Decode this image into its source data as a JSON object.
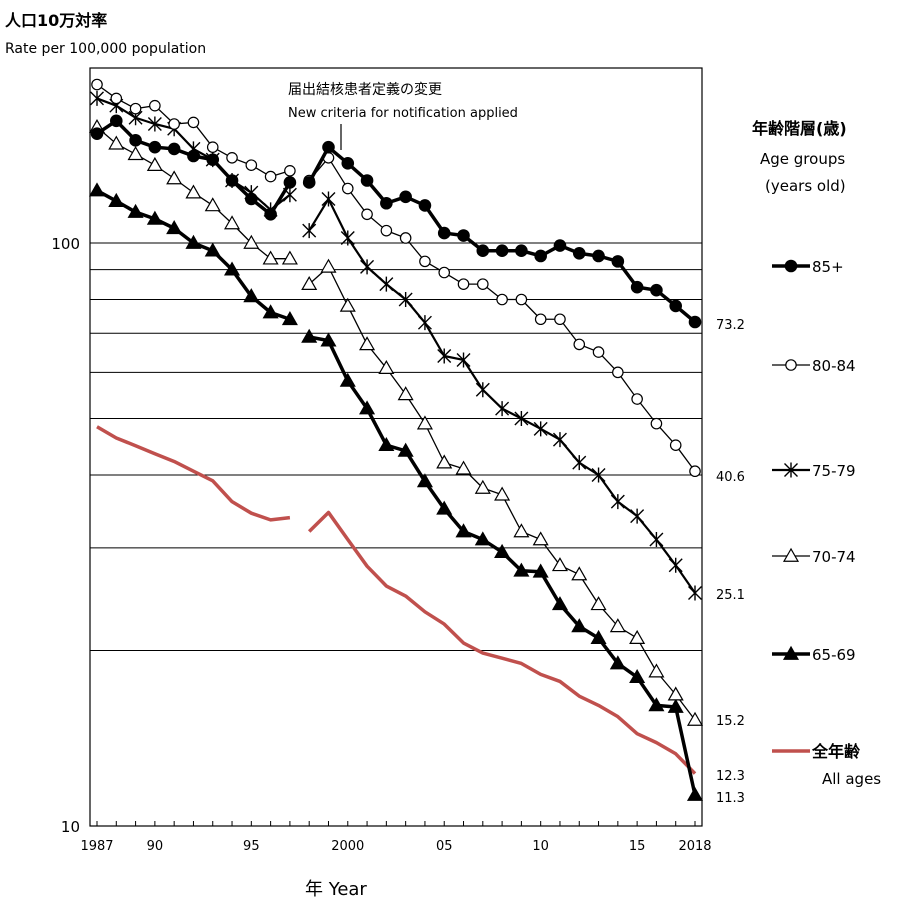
{
  "header": {
    "ylabel_jp": "人口10万対率",
    "ylabel_en": "Rate per 100,000  population"
  },
  "annotation": {
    "line1": "届出結核患者定義の変更",
    "line2": "New criteria for notification applied"
  },
  "legend": {
    "title": "年齢階層(歳)",
    "sub1": "Age groups",
    "sub2": "(years old)"
  },
  "xaxis": {
    "label": "年  Year",
    "ticks": [
      {
        "year": 1987,
        "label": "1987"
      },
      {
        "year": 1990,
        "label": "90"
      },
      {
        "year": 1995,
        "label": "95"
      },
      {
        "year": 2000,
        "label": "2000"
      },
      {
        "year": 2005,
        "label": "05"
      },
      {
        "year": 2010,
        "label": "10"
      },
      {
        "year": 2015,
        "label": "15"
      },
      {
        "year": 2018,
        "label": "2018"
      }
    ]
  },
  "yaxis": {
    "ticks": [
      {
        "value": 100,
        "label": "100"
      },
      {
        "value": 10,
        "label": "10"
      }
    ]
  },
  "end_labels": [
    {
      "text": "73.2"
    },
    {
      "text": "40.6"
    },
    {
      "text": "25.1"
    },
    {
      "text": "15.2"
    },
    {
      "text": "12.3"
    },
    {
      "text": "11.3"
    }
  ],
  "chart_data": {
    "type": "line",
    "log_scale_y": true,
    "ylim": [
      10,
      200
    ],
    "xlim": [
      1987,
      2018
    ],
    "gridlines_y": [
      100,
      90,
      80,
      70,
      60,
      50,
      40,
      30,
      20
    ],
    "break_between": [
      1997,
      1998
    ],
    "series": [
      {
        "name": "85+",
        "style": "filled-circle",
        "color": "#000000",
        "stroke_width": 3.5,
        "x": [
          1987,
          1988,
          1989,
          1990,
          1991,
          1992,
          1993,
          1994,
          1995,
          1996,
          1997,
          1998,
          1999,
          2000,
          2001,
          2002,
          2003,
          2004,
          2005,
          2006,
          2007,
          2008,
          2009,
          2010,
          2011,
          2012,
          2013,
          2014,
          2015,
          2016,
          2017,
          2018
        ],
        "values": [
          154,
          162,
          150,
          146,
          145,
          141,
          139,
          128,
          119,
          112,
          127,
          127,
          146,
          137,
          128,
          117,
          120,
          116,
          104,
          103,
          97,
          97,
          97,
          95,
          99,
          96,
          95,
          93,
          84,
          83,
          78,
          73.2
        ]
      },
      {
        "name": "80-84",
        "style": "open-circle",
        "color": "#000000",
        "stroke_width": 1.3,
        "x": [
          1987,
          1988,
          1989,
          1990,
          1991,
          1992,
          1993,
          1994,
          1995,
          1996,
          1997,
          1998,
          1999,
          2000,
          2001,
          2002,
          2003,
          2004,
          2005,
          2006,
          2007,
          2008,
          2009,
          2010,
          2011,
          2012,
          2013,
          2014,
          2015,
          2016,
          2017,
          2018
        ],
        "values": [
          187,
          177,
          170,
          172,
          160,
          161,
          146,
          140,
          136,
          130,
          133,
          128,
          140,
          124,
          112,
          105,
          102,
          93,
          89,
          85,
          85,
          80,
          80,
          74,
          74,
          67,
          65,
          60,
          54,
          49,
          45,
          40.6
        ]
      },
      {
        "name": "75-79",
        "style": "asterisk",
        "color": "#000000",
        "stroke_width": 2.2,
        "x": [
          1987,
          1988,
          1989,
          1990,
          1991,
          1992,
          1993,
          1994,
          1995,
          1996,
          1997,
          1998,
          1999,
          2000,
          2001,
          2002,
          2003,
          2004,
          2005,
          2006,
          2007,
          2008,
          2009,
          2010,
          2011,
          2012,
          2013,
          2014,
          2015,
          2016,
          2017,
          2018
        ],
        "values": [
          177,
          172,
          164,
          160,
          157,
          145,
          139,
          128,
          122,
          114,
          121,
          105,
          119,
          102,
          91,
          85,
          80,
          73,
          64,
          63,
          56,
          52,
          50,
          48,
          46,
          42,
          40,
          36,
          34,
          31,
          28,
          25.1
        ]
      },
      {
        "name": "70-74",
        "style": "open-triangle",
        "color": "#000000",
        "stroke_width": 1.3,
        "x": [
          1987,
          1988,
          1989,
          1990,
          1991,
          1992,
          1993,
          1994,
          1995,
          1996,
          1997,
          1998,
          1999,
          2000,
          2001,
          2002,
          2003,
          2004,
          2005,
          2006,
          2007,
          2008,
          2009,
          2010,
          2011,
          2012,
          2013,
          2014,
          2015,
          2016,
          2017,
          2018
        ],
        "values": [
          158,
          148,
          142,
          136,
          129,
          122,
          116,
          108,
          100,
          94,
          94,
          85,
          91,
          78,
          67,
          61,
          55,
          49,
          42,
          41,
          38,
          37,
          32,
          31,
          28,
          27,
          24,
          22,
          21,
          18.4,
          16.8,
          15.2
        ]
      },
      {
        "name": "65-69",
        "style": "filled-triangle",
        "color": "#000000",
        "stroke_width": 3.5,
        "x": [
          1987,
          1988,
          1989,
          1990,
          1991,
          1992,
          1993,
          1994,
          1995,
          1996,
          1997,
          1998,
          1999,
          2000,
          2001,
          2002,
          2003,
          2004,
          2005,
          2006,
          2007,
          2008,
          2009,
          2010,
          2011,
          2012,
          2013,
          2014,
          2015,
          2016,
          2017,
          2018
        ],
        "values": [
          123,
          118,
          113,
          110,
          106,
          100,
          97,
          90,
          81,
          76,
          74,
          69,
          68,
          58,
          52,
          45,
          44,
          39,
          35,
          32,
          31,
          29.5,
          27.4,
          27.3,
          24,
          22,
          21,
          19,
          18,
          16.1,
          16.0,
          11.3
        ]
      },
      {
        "name": "全年齢",
        "name2": "All ages",
        "style": "none",
        "color": "#c0504d",
        "stroke_width": 3.5,
        "x": [
          1987,
          1988,
          1989,
          1990,
          1991,
          1992,
          1993,
          1994,
          1995,
          1996,
          1997,
          1998,
          1999,
          2000,
          2001,
          2002,
          2003,
          2004,
          2005,
          2006,
          2007,
          2008,
          2009,
          2010,
          2011,
          2012,
          2013,
          2014,
          2015,
          2016,
          2017,
          2018
        ],
        "values": [
          48.4,
          46.3,
          44.9,
          43.5,
          42.2,
          40.6,
          39.1,
          36.0,
          34.4,
          33.5,
          33.8,
          32.0,
          34.5,
          31.0,
          27.9,
          25.8,
          24.8,
          23.3,
          22.2,
          20.6,
          19.8,
          19.4,
          19.0,
          18.2,
          17.7,
          16.7,
          16.1,
          15.4,
          14.4,
          13.9,
          13.3,
          12.3
        ]
      }
    ]
  }
}
